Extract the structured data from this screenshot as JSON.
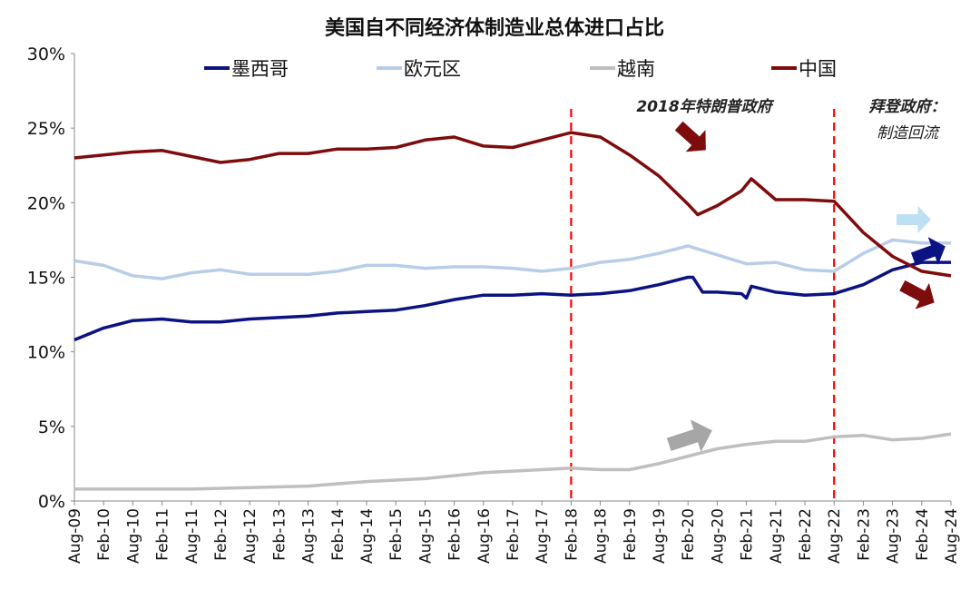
{
  "chart_data": {
    "type": "line",
    "title": "美国自不同经济体制造业总体进口占比",
    "xlabel": "",
    "ylabel": "",
    "ylim": [
      0,
      30
    ],
    "yticks": [
      "0%",
      "5%",
      "10%",
      "15%",
      "20%",
      "25%",
      "30%"
    ],
    "xticks": [
      "Aug-09",
      "Feb-10",
      "Aug-10",
      "Feb-11",
      "Aug-11",
      "Feb-12",
      "Aug-12",
      "Feb-13",
      "Aug-13",
      "Feb-14",
      "Aug-14",
      "Feb-15",
      "Aug-15",
      "Feb-16",
      "Aug-16",
      "Feb-17",
      "Aug-17",
      "Feb-18",
      "Aug-18",
      "Feb-19",
      "Aug-19",
      "Feb-20",
      "Aug-20",
      "Feb-21",
      "Aug-21",
      "Feb-22",
      "Aug-22",
      "Feb-23",
      "Aug-23",
      "Feb-24",
      "Aug-24"
    ],
    "grid": false,
    "legend_position": "top",
    "series": [
      {
        "name": "墨西哥",
        "color": "#0B1282",
        "x": [
          "2009-08",
          "2010-02",
          "2010-08",
          "2011-02",
          "2011-08",
          "2012-02",
          "2012-08",
          "2013-02",
          "2013-08",
          "2014-02",
          "2014-08",
          "2015-02",
          "2015-08",
          "2016-02",
          "2016-08",
          "2017-02",
          "2017-08",
          "2018-02",
          "2018-08",
          "2019-02",
          "2019-08",
          "2020-02",
          "2020-03",
          "2020-05",
          "2020-08",
          "2021-01",
          "2021-02",
          "2021-03",
          "2021-08",
          "2022-02",
          "2022-08",
          "2023-02",
          "2023-08",
          "2024-02",
          "2024-08"
        ],
        "values": [
          10.8,
          11.6,
          12.1,
          12.2,
          12.0,
          12.0,
          12.2,
          12.3,
          12.4,
          12.6,
          12.7,
          12.8,
          13.1,
          13.5,
          13.8,
          13.8,
          13.9,
          13.8,
          13.9,
          14.1,
          14.5,
          15.0,
          15.0,
          14.0,
          14.0,
          13.9,
          13.6,
          14.4,
          14.0,
          13.8,
          13.9,
          14.5,
          15.5,
          16.0,
          16.0
        ]
      },
      {
        "name": "欧元区",
        "color": "#B8CDE8",
        "x": [
          "2009-08",
          "2010-02",
          "2010-08",
          "2011-02",
          "2011-08",
          "2012-02",
          "2012-08",
          "2013-02",
          "2013-08",
          "2014-02",
          "2014-08",
          "2015-02",
          "2015-08",
          "2016-02",
          "2016-08",
          "2017-02",
          "2017-08",
          "2018-02",
          "2018-08",
          "2019-02",
          "2019-08",
          "2020-02",
          "2020-08",
          "2021-02",
          "2021-08",
          "2022-02",
          "2022-08",
          "2023-02",
          "2023-08",
          "2024-02",
          "2024-08"
        ],
        "values": [
          16.1,
          15.8,
          15.1,
          14.9,
          15.3,
          15.5,
          15.2,
          15.2,
          15.2,
          15.4,
          15.8,
          15.8,
          15.6,
          15.7,
          15.7,
          15.6,
          15.4,
          15.6,
          16.0,
          16.2,
          16.6,
          17.1,
          16.5,
          15.9,
          16.0,
          15.5,
          15.4,
          16.6,
          17.5,
          17.3,
          17.3
        ]
      },
      {
        "name": "越南",
        "color": "#BFBFBF",
        "x": [
          "2009-08",
          "2011-08",
          "2012-08",
          "2013-08",
          "2014-08",
          "2015-08",
          "2016-08",
          "2017-08",
          "2018-02",
          "2018-08",
          "2019-02",
          "2019-08",
          "2020-02",
          "2020-08",
          "2021-02",
          "2021-08",
          "2022-02",
          "2022-08",
          "2023-02",
          "2023-08",
          "2024-02",
          "2024-08"
        ],
        "values": [
          0.8,
          0.8,
          0.9,
          1.0,
          1.3,
          1.5,
          1.9,
          2.1,
          2.2,
          2.1,
          2.1,
          2.5,
          3.0,
          3.5,
          3.8,
          4.0,
          4.0,
          4.3,
          4.4,
          4.1,
          4.2,
          4.5
        ]
      },
      {
        "name": "中国",
        "color": "#7E0C0C",
        "x": [
          "2009-08",
          "2010-02",
          "2010-08",
          "2011-02",
          "2011-08",
          "2012-02",
          "2012-08",
          "2013-02",
          "2013-08",
          "2014-02",
          "2014-08",
          "2015-02",
          "2015-08",
          "2016-02",
          "2016-08",
          "2017-02",
          "2017-08",
          "2018-02",
          "2018-08",
          "2019-02",
          "2019-08",
          "2020-02",
          "2020-04",
          "2020-08",
          "2021-01",
          "2021-03",
          "2021-08",
          "2022-02",
          "2022-08",
          "2023-02",
          "2023-08",
          "2024-02",
          "2024-08"
        ],
        "values": [
          23.0,
          23.2,
          23.4,
          23.5,
          23.1,
          22.7,
          22.9,
          23.3,
          23.3,
          23.6,
          23.6,
          23.7,
          24.2,
          24.4,
          23.8,
          23.7,
          24.2,
          24.7,
          24.4,
          23.2,
          21.8,
          19.9,
          19.2,
          19.8,
          20.8,
          21.6,
          20.2,
          20.2,
          20.1,
          18.0,
          16.4,
          15.4,
          15.1
        ]
      }
    ],
    "vlines": [
      {
        "x": "2018-02",
        "color": "#FF0000",
        "style": "dashed"
      },
      {
        "x": "2022-08",
        "color": "#FF0000",
        "style": "dashed"
      }
    ],
    "annotations": [
      {
        "text": "2018年特朗普政府"
      },
      {
        "text": "拜登政府："
      },
      {
        "text": "制造回流"
      }
    ],
    "arrows": [
      {
        "series": "中国",
        "direction": "down",
        "color": "#7E0C0C"
      },
      {
        "series": "中国",
        "direction": "down",
        "color": "#7E0C0C"
      },
      {
        "series": "欧元区",
        "direction": "right",
        "color": "#BDE0F5"
      },
      {
        "series": "墨西哥",
        "direction": "up",
        "color": "#0B1282"
      },
      {
        "series": "越南",
        "direction": "up",
        "color": "#A6A6A6"
      }
    ]
  }
}
